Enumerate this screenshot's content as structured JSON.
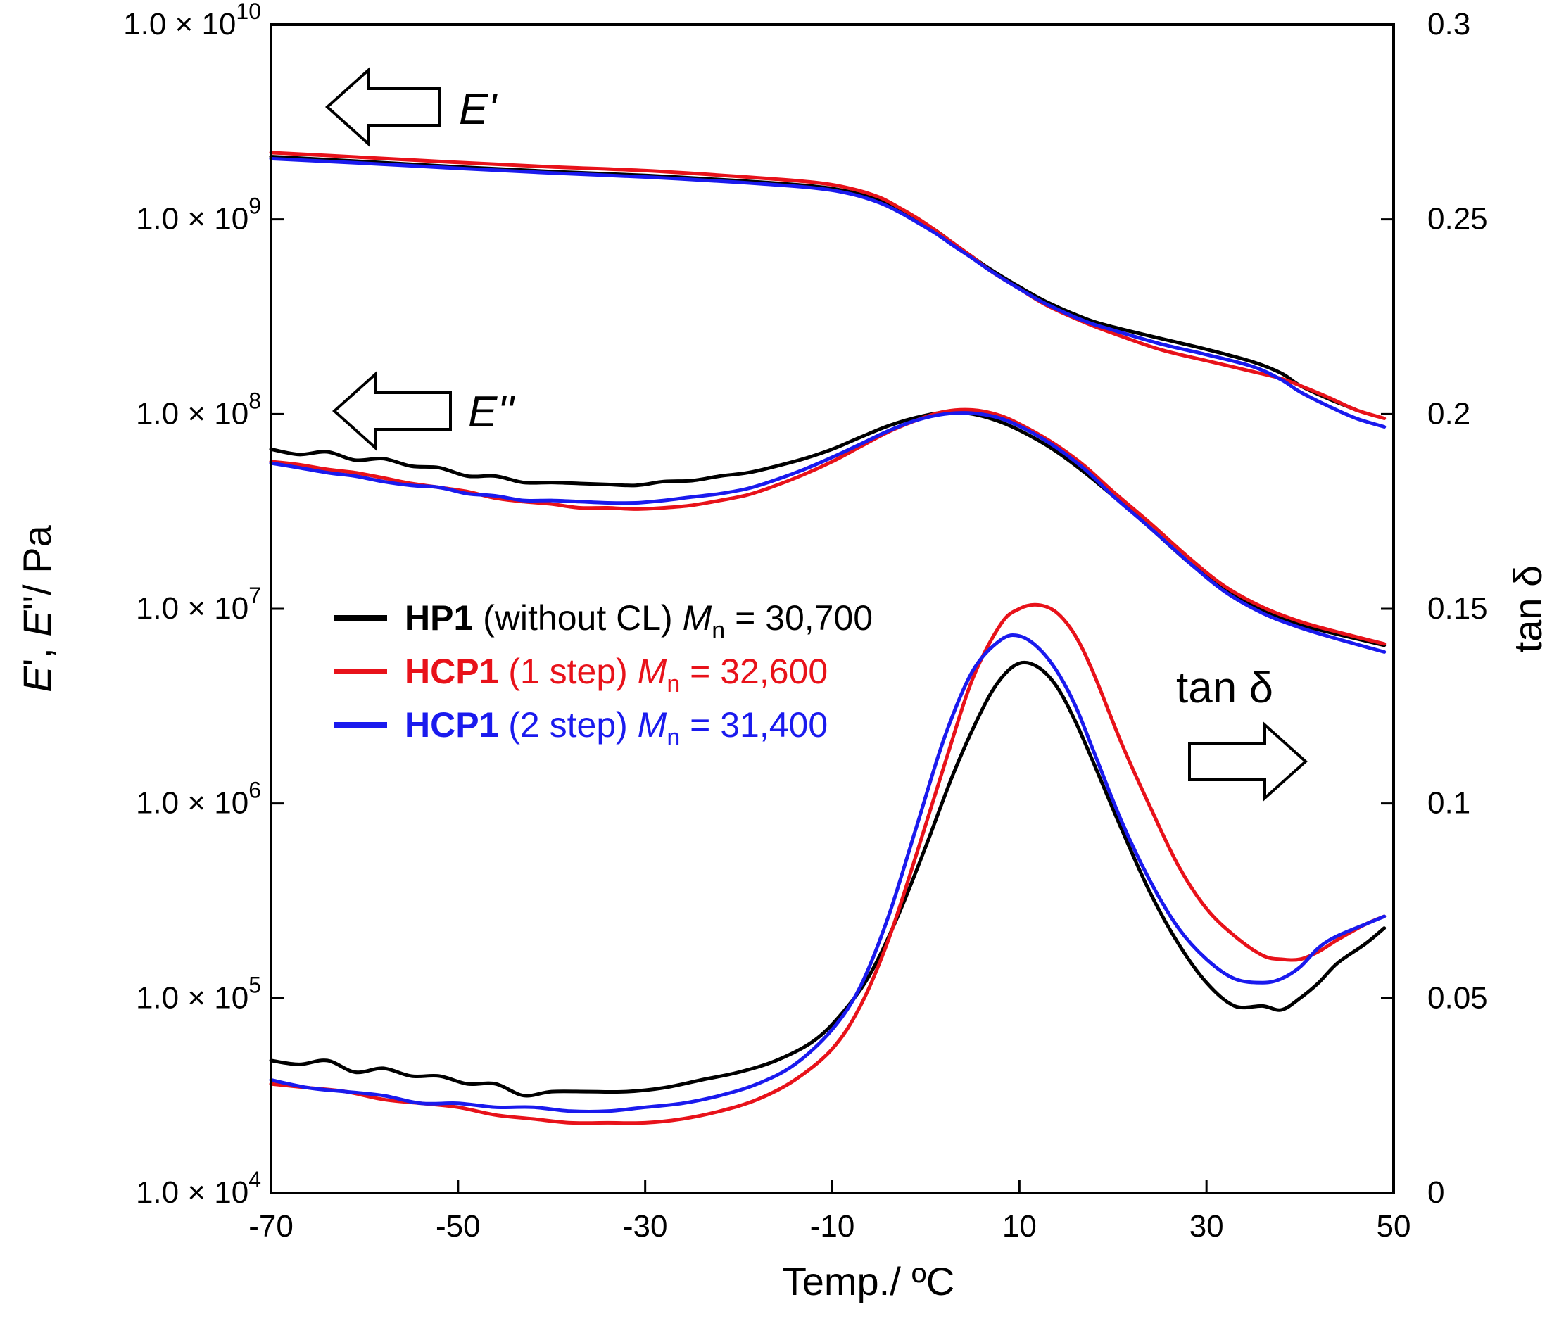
{
  "chart_data": {
    "type": "line",
    "xlabel": "Temp./ ºC",
    "ylabel_left": "E', E''/ Pa",
    "ylabel_right": "tan δ",
    "x_range": [
      -70,
      50
    ],
    "x_ticks": [
      -70,
      -50,
      -30,
      -10,
      10,
      30,
      50
    ],
    "y_left_scale": "log",
    "y_left_range": [
      10000,
      10000000000
    ],
    "y_left_ticks": [
      {
        "mantissa": "1.0",
        "times": "×",
        "base": "10",
        "exp": "10"
      },
      {
        "mantissa": "1.0",
        "times": "×",
        "base": "10",
        "exp": "9"
      },
      {
        "mantissa": "1.0",
        "times": "×",
        "base": "10",
        "exp": "8"
      },
      {
        "mantissa": "1.0",
        "times": "×",
        "base": "10",
        "exp": "7"
      },
      {
        "mantissa": "1.0",
        "times": "×",
        "base": "10",
        "exp": "6"
      },
      {
        "mantissa": "1.0",
        "times": "×",
        "base": "10",
        "exp": "5"
      },
      {
        "mantissa": "1.0",
        "times": "×",
        "base": "10",
        "exp": "4"
      }
    ],
    "y_right_range": [
      0,
      0.3
    ],
    "y_right_ticks": [
      "0.3",
      "0.25",
      "0.2",
      "0.15",
      "0.1",
      "0.05",
      "0"
    ],
    "annotations": {
      "storage": "E'",
      "loss": "E''",
      "tan": "tan δ"
    },
    "legend": [
      {
        "name": "HP1",
        "detail": " (without CL) ",
        "mn": "M",
        "mn_sub": "n",
        "value": " = 30,700",
        "color": "#000000",
        "label_color": "#000000"
      },
      {
        "name": "HCP1",
        "detail": " (1 step) ",
        "mn": "M",
        "mn_sub": "n",
        "value": " = 32,600",
        "color": "#e8121a",
        "label_color": "#e8121a"
      },
      {
        "name": "HCP1",
        "detail": " (2 step) ",
        "mn": "M",
        "mn_sub": "n",
        "value": " = 31,400",
        "color": "#1a1aee",
        "label_color": "#1a1aee"
      }
    ],
    "series": [
      {
        "name": "HP1 E'",
        "axis": "left",
        "color": "#000000",
        "x": [
          -70,
          -60,
          -50,
          -40,
          -30,
          -20,
          -12,
          -8,
          -5,
          -3,
          -1,
          1,
          3,
          5,
          7,
          10,
          13,
          17,
          20,
          25,
          30,
          35,
          38,
          40,
          43,
          46
        ],
        "y": [
          2100000000.0,
          1980000000.0,
          1860000000.0,
          1760000000.0,
          1680000000.0,
          1580000000.0,
          1480000000.0,
          1380000000.0,
          1250000000.0,
          1130000000.0,
          1000000000.0,
          880000000.0,
          750000000.0,
          640000000.0,
          550000000.0,
          450000000.0,
          375000000.0,
          310000000.0,
          280000000.0,
          245000000.0,
          215000000.0,
          185000000.0,
          162000000.0,
          140000000.0,
          120000000.0,
          105000000.0
        ]
      },
      {
        "name": "HCP1 (1 step) E'",
        "axis": "left",
        "color": "#e8121a",
        "x": [
          -70,
          -60,
          -50,
          -40,
          -30,
          -20,
          -12,
          -8,
          -5,
          -3,
          -1,
          1,
          3,
          5,
          7,
          10,
          13,
          17,
          20,
          25,
          30,
          35,
          38,
          40,
          43,
          46,
          49
        ],
        "y": [
          2200000000.0,
          2080000000.0,
          1960000000.0,
          1860000000.0,
          1780000000.0,
          1660000000.0,
          1550000000.0,
          1440000000.0,
          1300000000.0,
          1160000000.0,
          1020000000.0,
          880000000.0,
          750000000.0,
          640000000.0,
          540000000.0,
          440000000.0,
          360000000.0,
          295000000.0,
          260000000.0,
          215000000.0,
          188000000.0,
          165000000.0,
          152000000.0,
          140000000.0,
          122000000.0,
          105000000.0,
          95000000.0
        ]
      },
      {
        "name": "HCP1 (2 step) E'",
        "axis": "left",
        "color": "#1a1aee",
        "x": [
          -70,
          -60,
          -50,
          -40,
          -30,
          -20,
          -12,
          -8,
          -5,
          -3,
          -1,
          1,
          3,
          5,
          7,
          10,
          13,
          17,
          20,
          25,
          30,
          35,
          38,
          40,
          43,
          46,
          49
        ],
        "y": [
          2050000000.0,
          1940000000.0,
          1830000000.0,
          1730000000.0,
          1650000000.0,
          1550000000.0,
          1450000000.0,
          1350000000.0,
          1220000000.0,
          1100000000.0,
          970000000.0,
          850000000.0,
          730000000.0,
          630000000.0,
          540000000.0,
          440000000.0,
          365000000.0,
          300000000.0,
          270000000.0,
          230000000.0,
          202000000.0,
          175000000.0,
          150000000.0,
          130000000.0,
          110000000.0,
          95000000.0,
          86000000.0
        ]
      },
      {
        "name": "HP1 E''",
        "axis": "left",
        "color": "#000000",
        "x": [
          -70,
          -67,
          -64,
          -61,
          -58,
          -55,
          -52,
          -49,
          -46,
          -43,
          -40,
          -37,
          -34,
          -31,
          -28,
          -25,
          -22,
          -19,
          -16,
          -13,
          -10,
          -7,
          -4,
          -1,
          2,
          5,
          8,
          11,
          14,
          17,
          20,
          24,
          28,
          32,
          36,
          40,
          44,
          49
        ],
        "y": [
          66000000.0,
          62000000.0,
          64000000.0,
          58000000.0,
          59000000.0,
          54000000.0,
          53000000.0,
          48000000.0,
          48000000.0,
          44500000.0,
          44500000.0,
          44000000.0,
          43500000.0,
          43000000.0,
          45000000.0,
          45500000.0,
          48000000.0,
          50000000.0,
          54000000.0,
          59000000.0,
          66000000.0,
          76000000.0,
          87000000.0,
          96000000.0,
          102000000.0,
          100000000.0,
          91000000.0,
          78000000.0,
          64000000.0,
          50000000.0,
          38000000.0,
          26000000.0,
          17500000.0,
          12500000.0,
          9800000.0,
          8300000.0,
          7400000.0,
          6500000.0
        ]
      },
      {
        "name": "HCP1 (1 step) E''",
        "axis": "left",
        "color": "#e8121a",
        "x": [
          -70,
          -67,
          -64,
          -61,
          -58,
          -55,
          -52,
          -49,
          -46,
          -43,
          -40,
          -37,
          -34,
          -31,
          -28,
          -25,
          -22,
          -19,
          -16,
          -13,
          -10,
          -7,
          -4,
          -1,
          2,
          5,
          8,
          11,
          14,
          17,
          20,
          24,
          28,
          32,
          36,
          40,
          44,
          49
        ],
        "y": [
          57000000.0,
          55000000.0,
          52000000.0,
          50000000.0,
          47000000.0,
          44000000.0,
          42000000.0,
          40000000.0,
          37000000.0,
          35500000.0,
          34500000.0,
          33000000.0,
          33000000.0,
          32500000.0,
          33000000.0,
          34000000.0,
          36000000.0,
          38500000.0,
          43000000.0,
          49000000.0,
          57000000.0,
          68000000.0,
          81000000.0,
          93000000.0,
          103000000.0,
          105000000.0,
          98000000.0,
          84000000.0,
          69000000.0,
          54000000.0,
          40000000.0,
          27500000.0,
          18500000.0,
          13000000.0,
          10200000.0,
          8600000.0,
          7600000.0,
          6600000.0
        ]
      },
      {
        "name": "HCP1 (2 step) E''",
        "axis": "left",
        "color": "#1a1aee",
        "x": [
          -70,
          -67,
          -64,
          -61,
          -58,
          -55,
          -52,
          -49,
          -46,
          -43,
          -40,
          -37,
          -34,
          -31,
          -28,
          -25,
          -22,
          -19,
          -16,
          -13,
          -10,
          -7,
          -4,
          -1,
          2,
          5,
          8,
          11,
          14,
          17,
          20,
          24,
          28,
          32,
          36,
          40,
          44,
          49
        ],
        "y": [
          56000000.0,
          53000000.0,
          50000000.0,
          48000000.0,
          45000000.0,
          43000000.0,
          42000000.0,
          39000000.0,
          38000000.0,
          36000000.0,
          36000000.0,
          35500000.0,
          35000000.0,
          35000000.0,
          36000000.0,
          37500000.0,
          39000000.0,
          41500000.0,
          46000000.0,
          52000000.0,
          60000000.0,
          70000000.0,
          82000000.0,
          93000000.0,
          100000000.0,
          101000000.0,
          95000000.0,
          82000000.0,
          67000000.0,
          52000000.0,
          38000000.0,
          26000000.0,
          17500000.0,
          12200000.0,
          9500000.0,
          8000000.0,
          7000000.0,
          6000000.0
        ]
      },
      {
        "name": "HP1 tanδ",
        "axis": "right",
        "color": "#000000",
        "x": [
          -70,
          -67,
          -64,
          -61,
          -58,
          -55,
          -52,
          -49,
          -46,
          -43,
          -40,
          -36,
          -32,
          -28,
          -24,
          -20,
          -16,
          -12,
          -9,
          -6,
          -3,
          0,
          3,
          6,
          8,
          10,
          12,
          14,
          16,
          18,
          21,
          24,
          27,
          30,
          33,
          36,
          38,
          40,
          42,
          44,
          47,
          49
        ],
        "y": [
          0.034,
          0.033,
          0.034,
          0.031,
          0.032,
          0.03,
          0.03,
          0.028,
          0.028,
          0.025,
          0.026,
          0.026,
          0.026,
          0.027,
          0.029,
          0.031,
          0.034,
          0.039,
          0.046,
          0.056,
          0.071,
          0.089,
          0.108,
          0.124,
          0.132,
          0.136,
          0.135,
          0.13,
          0.121,
          0.11,
          0.093,
          0.077,
          0.064,
          0.054,
          0.048,
          0.048,
          0.047,
          0.05,
          0.054,
          0.059,
          0.064,
          0.068
        ]
      },
      {
        "name": "HCP1 (1 step) tanδ",
        "axis": "right",
        "color": "#e8121a",
        "x": [
          -70,
          -66,
          -62,
          -58,
          -54,
          -50,
          -46,
          -42,
          -38,
          -34,
          -30,
          -26,
          -22,
          -18,
          -14,
          -10,
          -7,
          -4,
          -1,
          2,
          5,
          8,
          10,
          12,
          14,
          16,
          18,
          21,
          24,
          27,
          30,
          33,
          36,
          38,
          40,
          42,
          44,
          47,
          49
        ],
        "y": [
          0.028,
          0.027,
          0.026,
          0.024,
          0.023,
          0.022,
          0.02,
          0.019,
          0.018,
          0.018,
          0.018,
          0.019,
          0.021,
          0.024,
          0.029,
          0.037,
          0.048,
          0.065,
          0.087,
          0.11,
          0.132,
          0.146,
          0.15,
          0.151,
          0.149,
          0.143,
          0.133,
          0.115,
          0.099,
          0.084,
          0.073,
          0.066,
          0.061,
          0.06,
          0.06,
          0.062,
          0.065,
          0.069,
          0.071
        ]
      },
      {
        "name": "HCP1 (2 step) tanδ",
        "axis": "right",
        "color": "#1a1aee",
        "x": [
          -70,
          -66,
          -62,
          -58,
          -54,
          -50,
          -46,
          -42,
          -38,
          -34,
          -30,
          -26,
          -22,
          -18,
          -14,
          -10,
          -7,
          -4,
          -1,
          2,
          5,
          8,
          10,
          12,
          14,
          16,
          18,
          21,
          24,
          27,
          30,
          33,
          36,
          38,
          40,
          42,
          44,
          47,
          49
        ],
        "y": [
          0.029,
          0.027,
          0.026,
          0.025,
          0.023,
          0.023,
          0.022,
          0.022,
          0.021,
          0.021,
          0.022,
          0.023,
          0.025,
          0.028,
          0.033,
          0.042,
          0.053,
          0.071,
          0.094,
          0.117,
          0.134,
          0.142,
          0.143,
          0.14,
          0.134,
          0.125,
          0.113,
          0.095,
          0.08,
          0.068,
          0.06,
          0.055,
          0.054,
          0.055,
          0.058,
          0.063,
          0.066,
          0.069,
          0.071
        ]
      }
    ]
  }
}
